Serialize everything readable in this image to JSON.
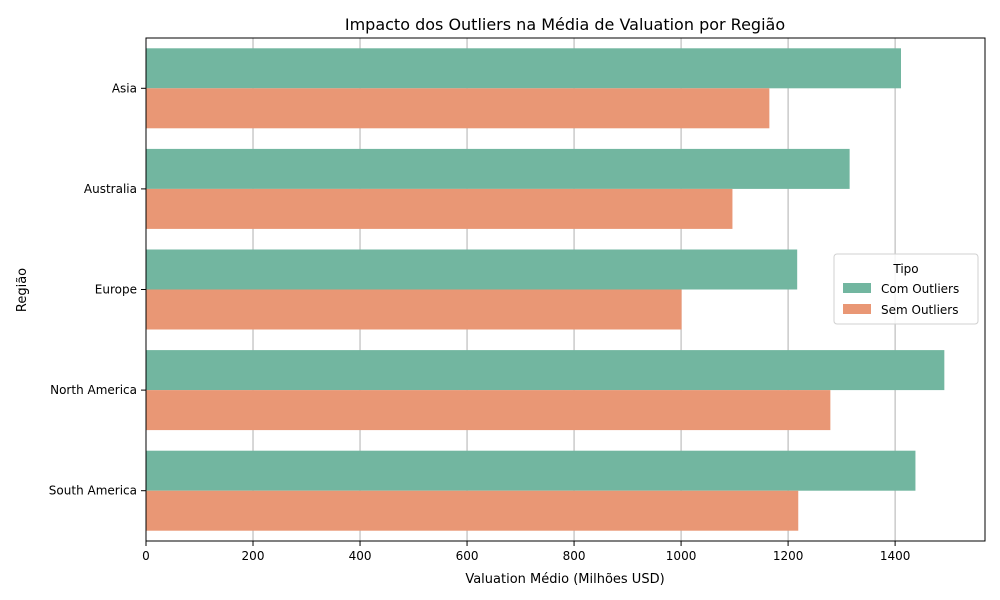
{
  "chart_data": {
    "type": "bar",
    "orientation": "horizontal",
    "title": "Impacto dos Outliers na Média de Valuation por Região",
    "xlabel": "Valuation Médio (Milhões USD)",
    "ylabel": "Região",
    "xlim": [
      0,
      1568
    ],
    "xticks": [
      0,
      200,
      400,
      600,
      800,
      1000,
      1200,
      1400
    ],
    "grid": "vertical",
    "categories": [
      "Asia",
      "Australia",
      "Europe",
      "North America",
      "South America"
    ],
    "legend": {
      "title": "Tipo",
      "placement": "center-right"
    },
    "series": [
      {
        "name": "Com Outliers",
        "color": "#72b6a0",
        "values": [
          1411,
          1315,
          1217,
          1492,
          1438
        ]
      },
      {
        "name": "Sem Outliers",
        "color": "#e99775",
        "values": [
          1165,
          1096,
          1001,
          1279,
          1219
        ]
      }
    ]
  }
}
